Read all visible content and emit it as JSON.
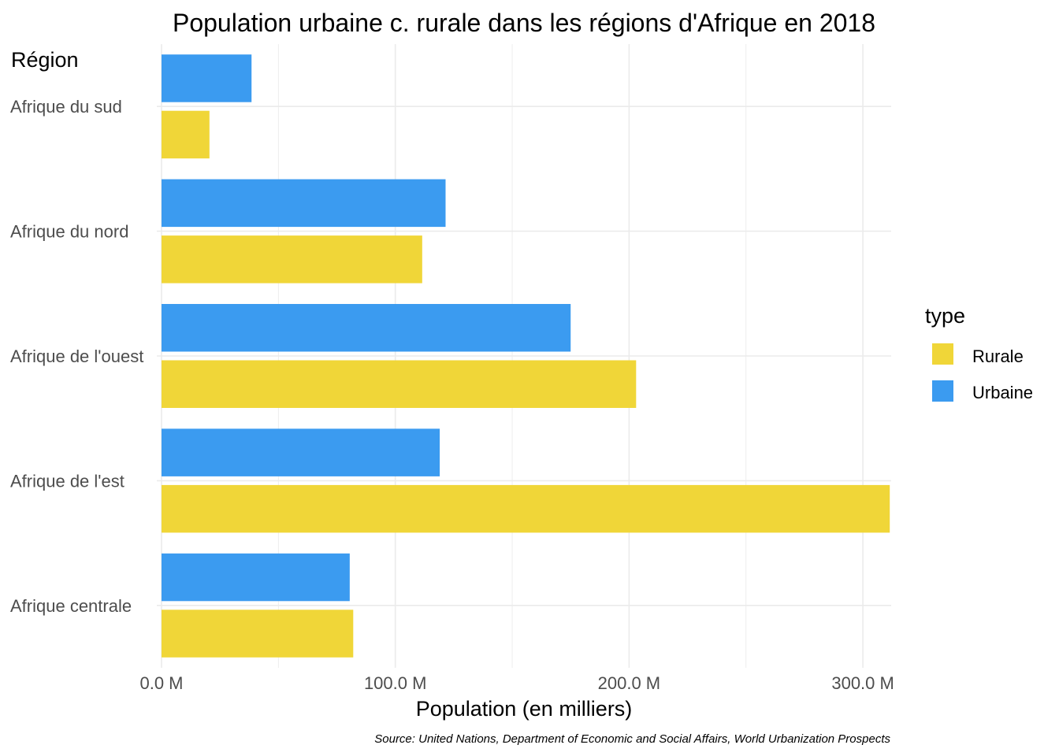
{
  "chart_data": {
    "type": "bar",
    "orientation": "horizontal",
    "title": "Population urbaine c. rurale dans les régions d'Afrique en 2018",
    "xlabel": "Population (en milliers)",
    "ylabel": "Région",
    "caption": "Source: United Nations, Department of Economic and Social Affairs, World Urbanization Prospects",
    "categories": [
      "Afrique du sud",
      "Afrique du nord",
      "Afrique de l'ouest",
      "Afrique de l'est",
      "Afrique centrale"
    ],
    "series": [
      {
        "name": "Urbaine",
        "color": "#3b9bf0",
        "values": [
          38.5,
          121.5,
          175.0,
          119.0,
          80.5
        ]
      },
      {
        "name": "Rurale",
        "color": "#f0d638",
        "values": [
          20.5,
          111.5,
          203.0,
          311.5,
          82.0
        ]
      }
    ],
    "xlim": [
      0,
      315
    ],
    "x_ticks": [
      0,
      100,
      200,
      300
    ],
    "x_tick_labels": [
      "0.0 M",
      "100.0 M",
      "200.0 M",
      "300.0 M"
    ],
    "grid": true,
    "legend": {
      "title": "type",
      "position": "right",
      "entries": [
        {
          "label": "Rurale",
          "color": "#f0d638"
        },
        {
          "label": "Urbaine",
          "color": "#3b9bf0"
        }
      ]
    }
  }
}
